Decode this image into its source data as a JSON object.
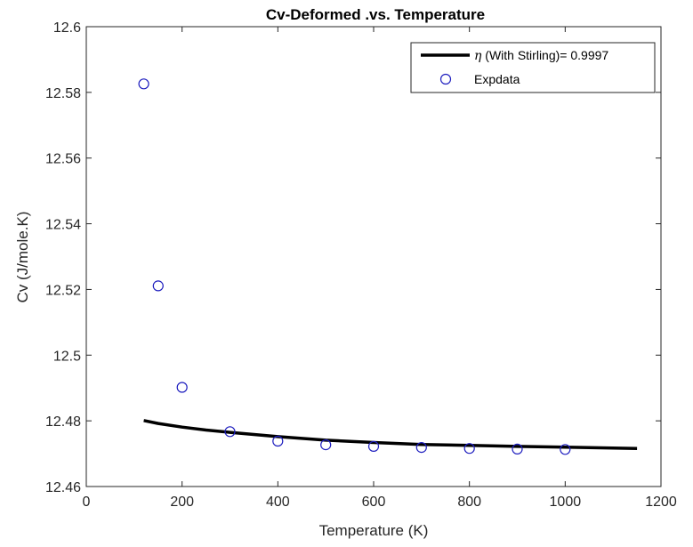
{
  "chart_data": {
    "type": "line",
    "title": "Cv-Deformed .vs. Temperature",
    "xlabel": "Temperature (K)",
    "ylabel": "Cv (J/mole.K)",
    "xlim": [
      0,
      1200
    ],
    "ylim": [
      12.46,
      12.6
    ],
    "xticks": [
      0,
      200,
      400,
      600,
      800,
      1000,
      1200
    ],
    "yticks": [
      12.46,
      12.48,
      12.5,
      12.52,
      12.54,
      12.56,
      12.58,
      12.6
    ],
    "xtick_labels": [
      "0",
      "200",
      "400",
      "600",
      "800",
      "1000",
      "1200"
    ],
    "ytick_labels": [
      "12.46",
      "12.48",
      "12.5",
      "12.52",
      "12.54",
      "12.56",
      "12.58",
      "12.6"
    ],
    "legend_position": "top-right",
    "grid": false,
    "series": [
      {
        "name": "η (With Stirling)= 0.9997",
        "legend_symbol": "η",
        "legend_text": " (With Stirling)= 0.9997",
        "style": "line",
        "color": "#000000",
        "x": [
          120,
          150,
          200,
          250,
          300,
          400,
          500,
          600,
          700,
          800,
          900,
          1000,
          1100,
          1150
        ],
        "y": [
          12.4801,
          12.4792,
          12.4781,
          12.4772,
          12.4765,
          12.4752,
          12.4741,
          12.4734,
          12.4728,
          12.4725,
          12.4722,
          12.472,
          12.4717,
          12.4716
        ]
      },
      {
        "name": "Expdata",
        "style": "markers",
        "color": "#1f1fbf",
        "x": [
          120,
          150,
          200,
          300,
          400,
          500,
          600,
          700,
          800,
          900,
          1000
        ],
        "y": [
          12.5826,
          12.5211,
          12.4902,
          12.4767,
          12.4738,
          12.4727,
          12.4722,
          12.4719,
          12.4716,
          12.4714,
          12.4713
        ]
      }
    ]
  }
}
